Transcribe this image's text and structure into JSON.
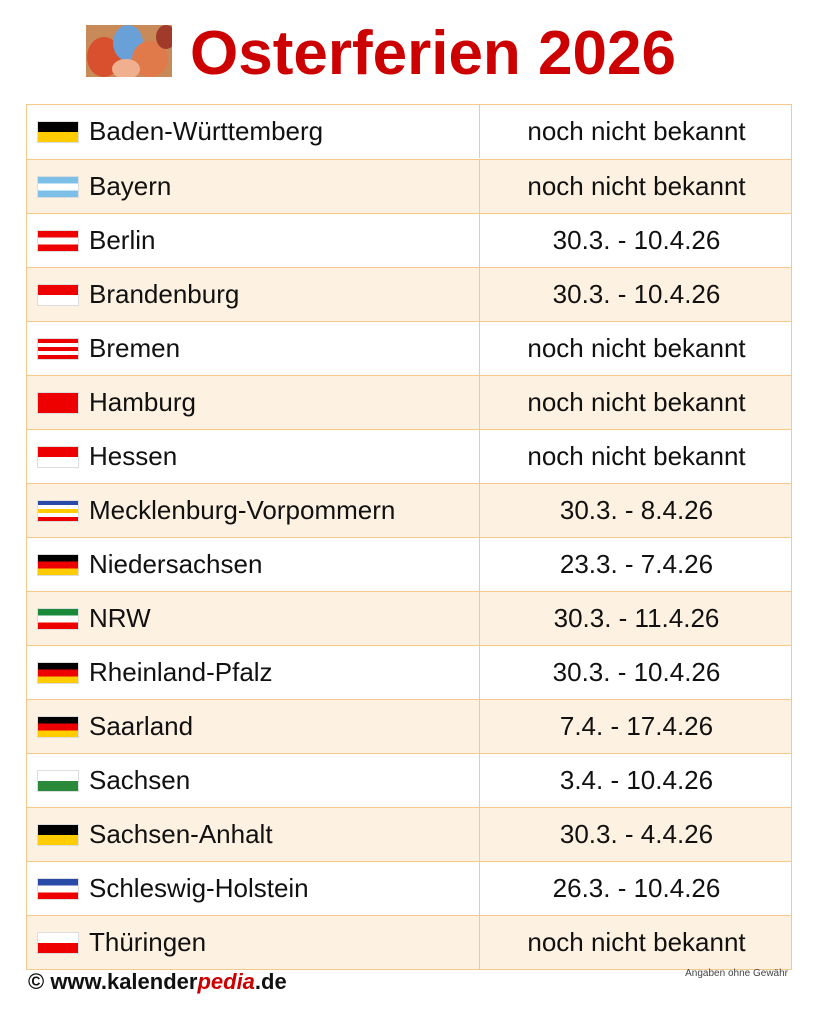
{
  "header": {
    "title": "Osterferien 2026"
  },
  "table": {
    "rows": [
      [
        "Baden-Württemberg",
        "noch nicht bekannt"
      ],
      [
        "Bayern",
        "noch nicht bekannt"
      ],
      [
        "Berlin",
        "30.3. - 10.4.26"
      ],
      [
        "Brandenburg",
        "30.3. - 10.4.26"
      ],
      [
        "Bremen",
        "noch nicht bekannt"
      ],
      [
        "Hamburg",
        "noch nicht bekannt"
      ],
      [
        "Hessen",
        "noch nicht bekannt"
      ],
      [
        "Mecklenburg-Vorpommern",
        "30.3. - 8.4.26"
      ],
      [
        "Niedersachsen",
        "23.3. - 7.4.26"
      ],
      [
        "NRW",
        "30.3. - 11.4.26"
      ],
      [
        "Rheinland-Pfalz",
        "30.3. - 10.4.26"
      ],
      [
        "Saarland",
        "7.4. - 17.4.26"
      ],
      [
        "Sachsen",
        "3.4. - 10.4.26"
      ],
      [
        "Sachsen-Anhalt",
        "30.3. - 4.4.26"
      ],
      [
        "Schleswig-Holstein",
        "26.3. - 10.4.26"
      ],
      [
        "Thüringen",
        "noch nicht bekannt"
      ]
    ]
  },
  "footer": {
    "site": "© www.kalender",
    "brand": "pedia",
    "tld": ".de",
    "disclaimer": "Angaben ohne Gewähr"
  }
}
